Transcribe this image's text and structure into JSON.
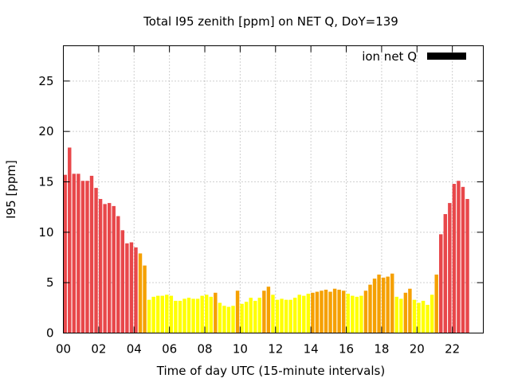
{
  "chart_data": {
    "type": "bar",
    "title": "Total I95 zenith [ppm] on NET Q, DoY=139",
    "xlabel": "Time of day UTC (15-minute intervals)",
    "ylabel": "I95 [ppm]",
    "xlim": [
      0,
      23.75
    ],
    "ylim": [
      0,
      28.5
    ],
    "grid": true,
    "legend_position": "top-right",
    "x_ticks": [
      {
        "value": 0,
        "label": "00"
      },
      {
        "value": 2,
        "label": "02"
      },
      {
        "value": 4,
        "label": "04"
      },
      {
        "value": 6,
        "label": "06"
      },
      {
        "value": 8,
        "label": "08"
      },
      {
        "value": 10,
        "label": "10"
      },
      {
        "value": 12,
        "label": "12"
      },
      {
        "value": 14,
        "label": "14"
      },
      {
        "value": 16,
        "label": "16"
      },
      {
        "value": 18,
        "label": "18"
      },
      {
        "value": 20,
        "label": "20"
      },
      {
        "value": 22,
        "label": "22"
      }
    ],
    "y_ticks": [
      {
        "value": 0,
        "label": "0"
      },
      {
        "value": 5,
        "label": "5"
      },
      {
        "value": 10,
        "label": "10"
      },
      {
        "value": 15,
        "label": "15"
      },
      {
        "value": 20,
        "label": "20"
      },
      {
        "value": 25,
        "label": "25"
      }
    ],
    "colors": {
      "red": "#e8474a",
      "orange": "#f5a000",
      "yellow": "#ffff00",
      "legend": "#000000"
    },
    "series": [
      {
        "name": "ion net Q",
        "values": [
          15.7,
          18.4,
          15.8,
          15.8,
          15.1,
          15.1,
          15.6,
          14.4,
          13.3,
          12.8,
          12.9,
          12.6,
          11.6,
          10.2,
          8.9,
          9.0,
          8.5,
          7.9,
          6.7,
          3.3,
          3.6,
          3.7,
          3.7,
          3.8,
          3.7,
          3.2,
          3.2,
          3.4,
          3.5,
          3.4,
          3.4,
          3.7,
          3.8,
          3.6,
          4.0,
          3.0,
          2.7,
          2.6,
          2.7,
          4.2,
          2.9,
          3.1,
          3.5,
          3.2,
          3.5,
          4.2,
          4.6,
          3.8,
          3.3,
          3.4,
          3.3,
          3.3,
          3.5,
          3.8,
          3.7,
          3.9,
          4.0,
          4.1,
          4.2,
          4.3,
          4.1,
          4.4,
          4.3,
          4.2,
          3.9,
          3.7,
          3.6,
          3.7,
          4.2,
          4.8,
          5.4,
          5.8,
          5.5,
          5.6,
          5.9,
          3.6,
          3.4,
          4.0,
          4.4,
          3.3,
          3.0,
          3.2,
          2.8,
          3.8,
          5.8,
          9.8,
          11.8,
          12.9,
          14.8,
          15.1,
          14.5,
          13.3
        ],
        "colors": [
          "red",
          "red",
          "red",
          "red",
          "red",
          "red",
          "red",
          "red",
          "red",
          "red",
          "red",
          "red",
          "red",
          "red",
          "red",
          "red",
          "red",
          "orange",
          "orange",
          "yellow",
          "yellow",
          "yellow",
          "yellow",
          "yellow",
          "yellow",
          "yellow",
          "yellow",
          "yellow",
          "yellow",
          "yellow",
          "yellow",
          "yellow",
          "yellow",
          "yellow",
          "orange",
          "yellow",
          "yellow",
          "yellow",
          "yellow",
          "orange",
          "yellow",
          "yellow",
          "yellow",
          "yellow",
          "yellow",
          "orange",
          "orange",
          "yellow",
          "yellow",
          "yellow",
          "yellow",
          "yellow",
          "yellow",
          "yellow",
          "yellow",
          "yellow",
          "orange",
          "orange",
          "orange",
          "orange",
          "orange",
          "orange",
          "orange",
          "orange",
          "yellow",
          "yellow",
          "yellow",
          "yellow",
          "orange",
          "orange",
          "orange",
          "orange",
          "orange",
          "orange",
          "orange",
          "yellow",
          "yellow",
          "orange",
          "orange",
          "yellow",
          "yellow",
          "yellow",
          "yellow",
          "yellow",
          "orange",
          "red",
          "red",
          "red",
          "red",
          "red",
          "red",
          "red"
        ]
      }
    ]
  }
}
